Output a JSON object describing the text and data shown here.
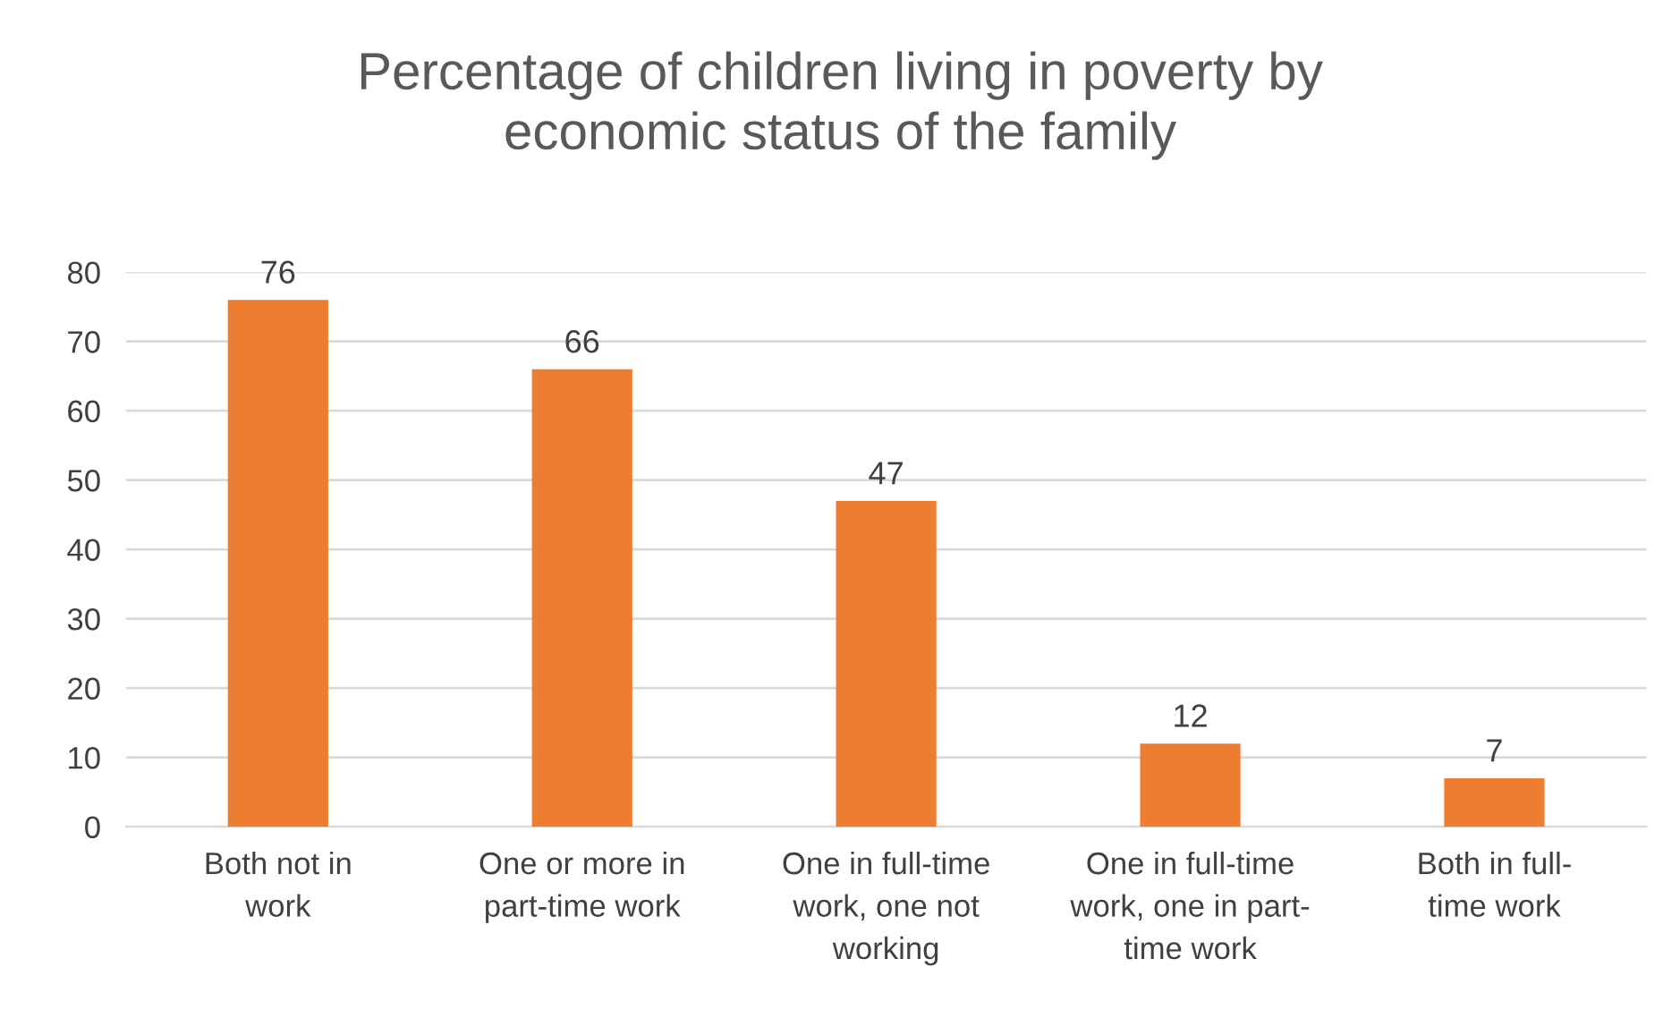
{
  "chart_data": {
    "type": "bar",
    "title": "Percentage of children living in poverty by\neconomic status of the family",
    "categories": [
      "Both not in\nwork",
      "One or more in\npart-time work",
      "One in full-time\nwork, one not\nworking",
      "One in full-time\nwork, one in part-\ntime work",
      "Both in full-\ntime work"
    ],
    "values": [
      76,
      66,
      47,
      12,
      7
    ],
    "color": "#ed7d31",
    "ylim": [
      0,
      80
    ],
    "yticks": [
      0,
      10,
      20,
      30,
      40,
      50,
      60,
      70,
      80
    ],
    "grid": "y",
    "data_labels": true,
    "legend": false
  }
}
